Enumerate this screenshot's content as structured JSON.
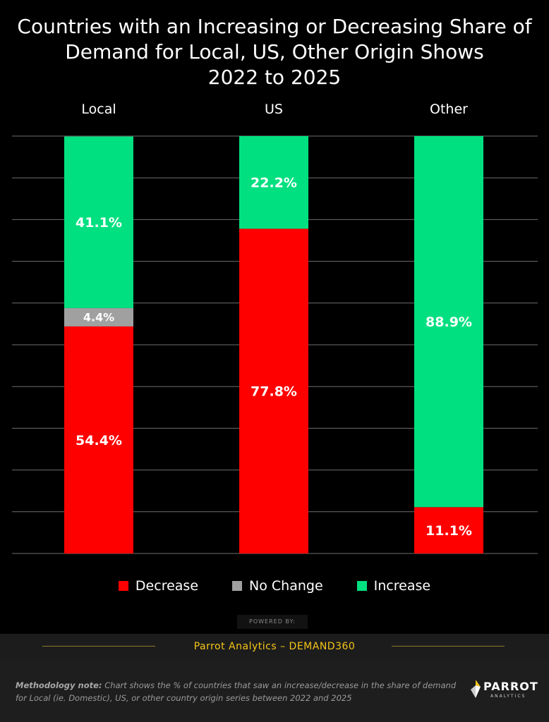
{
  "title_lines": [
    "Countries with an Increasing or Decreasing Share of",
    "Demand for Local, US, Other Origin Shows",
    "2022 to 2025"
  ],
  "chart_data": {
    "type": "bar",
    "stacked": true,
    "percent": true,
    "categories": [
      "Local",
      "US",
      "Other"
    ],
    "series": [
      {
        "name": "Decrease",
        "color": "#ff0000",
        "values": [
          54.4,
          77.8,
          11.1
        ]
      },
      {
        "name": "No Change",
        "color": "#a0a0a0",
        "values": [
          4.4,
          0,
          0
        ]
      },
      {
        "name": "Increase",
        "color": "#00e080",
        "values": [
          41.1,
          22.2,
          88.9
        ]
      }
    ],
    "ylim": [
      0,
      100
    ],
    "grid": true,
    "legend": "bottom"
  },
  "powered_by": "POWERED BY:",
  "footer": "Parrot Analytics – DEMAND360",
  "methodology": {
    "label": "Methodology note:",
    "text": "Chart shows the % of countries that saw an increase/decrease in the share of demand for Local  (ie. Domestic), US, or other country origin series between 2022 and 2025"
  },
  "logo": {
    "name": "PARROT",
    "sub": "ANALYTICS",
    "icon": "parrot-logo-icon"
  }
}
